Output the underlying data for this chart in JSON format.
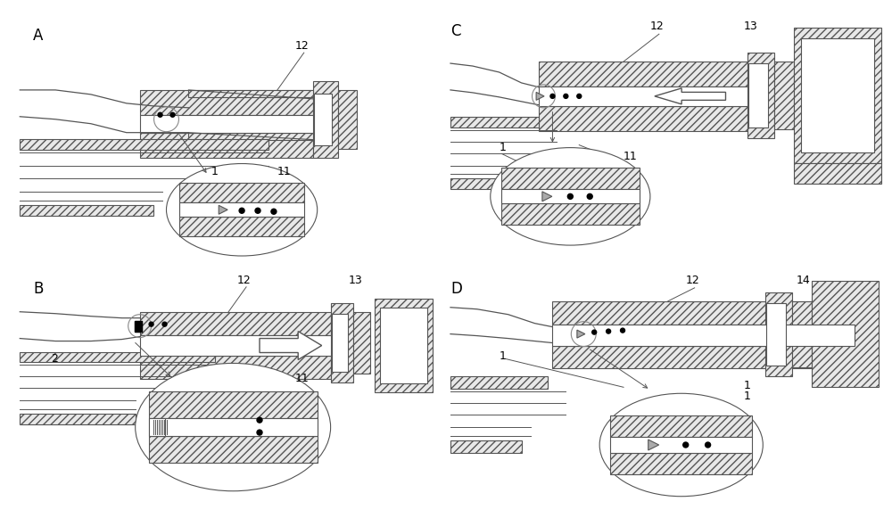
{
  "background_color": "#ffffff",
  "figsize": [
    10.0,
    5.81
  ],
  "dpi": 100,
  "panel_labels": [
    "A",
    "B",
    "C",
    "D"
  ],
  "hatch_pattern": "////",
  "hatch_lw": 0.5,
  "ec": "#555555",
  "fc_hatch": "#e8e8e8",
  "fc_white": "#ffffff"
}
